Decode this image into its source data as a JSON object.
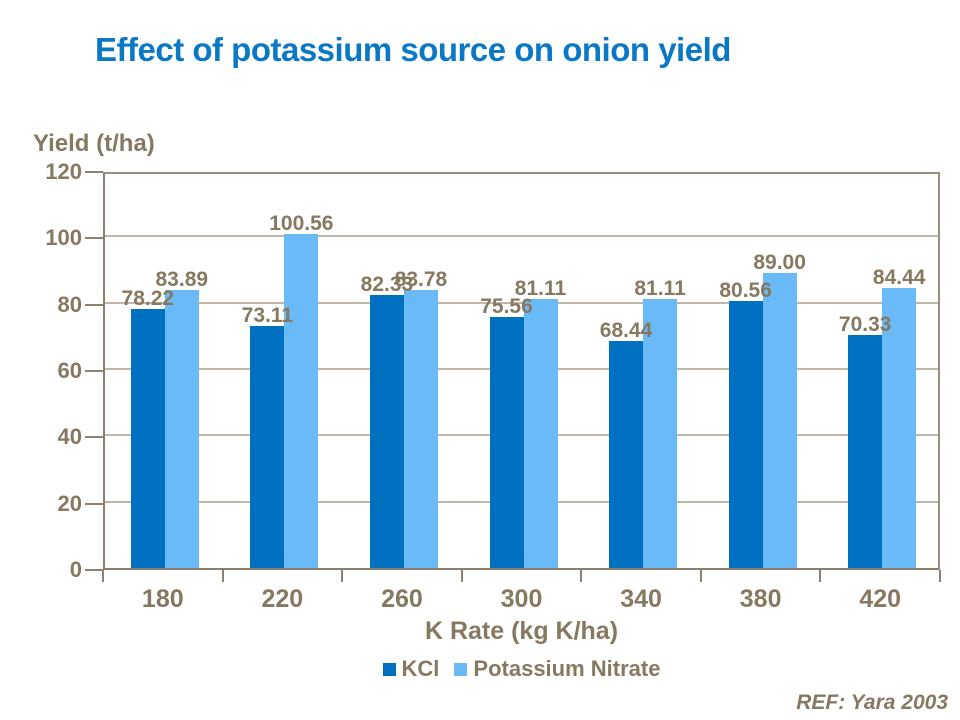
{
  "title": "Effect of potassium source on onion yield",
  "ref": "REF: Yara 2003",
  "colors": {
    "title_blue": "#0b78c6",
    "text_brown": "#877860",
    "axis_line": "#8f8171",
    "gridline": "#c0b7a8",
    "kcl_dark_blue": "#0071c0",
    "potassium_nitrate_light_blue": "#6ababf7"
  },
  "chart_data": {
    "type": "bar",
    "title": "Effect of potassium source on onion yield",
    "categories": [
      "180",
      "220",
      "260",
      "300",
      "340",
      "380",
      "420"
    ],
    "series": [
      {
        "name": "KCl",
        "color": "#0071c0",
        "values": [
          78.22,
          73.11,
          82.33,
          75.56,
          68.44,
          80.56,
          70.33
        ],
        "labels": [
          "78.22",
          "73.11",
          "82.33",
          "75.56",
          "68.44",
          "80.56",
          "70.33"
        ]
      },
      {
        "name": "Potassium Nitrate",
        "color": "#6abaf7",
        "values": [
          83.89,
          100.56,
          83.78,
          81.11,
          81.11,
          89.0,
          84.44
        ],
        "labels": [
          "83.89",
          "100.56",
          "83.78",
          "81.11",
          "81.11",
          "89.00",
          "84.44"
        ]
      }
    ],
    "xlabel": "K Rate (kg K/ha)",
    "ylabel": "Yield (t/ha)",
    "ylim": [
      0,
      120
    ],
    "yticks": [
      0,
      20,
      40,
      60,
      80,
      100,
      120
    ],
    "grid": true,
    "legend_position": "bottom"
  }
}
